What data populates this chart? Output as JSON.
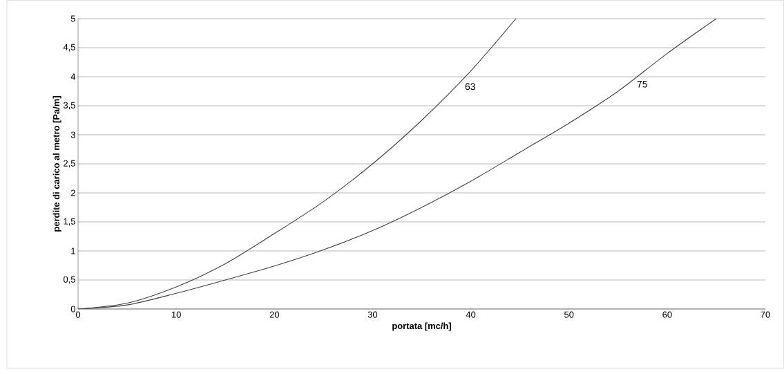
{
  "chart_data": {
    "type": "line",
    "xlabel": "portata [mc/h]",
    "ylabel": "perdite di carico al metro [Pa/m]",
    "series": [
      {
        "name": "63",
        "color": "#404040",
        "x": [
          0,
          5,
          10,
          15,
          20,
          25,
          30,
          35,
          40,
          44.6
        ],
        "values": [
          0,
          0.1,
          0.38,
          0.78,
          1.3,
          1.85,
          2.5,
          3.25,
          4.1,
          5
        ]
      },
      {
        "name": "75",
        "color": "#404040",
        "x": [
          0,
          5,
          10,
          15,
          20,
          25,
          30,
          35,
          40,
          45,
          50,
          55,
          60,
          65
        ],
        "values": [
          0,
          0.07,
          0.27,
          0.5,
          0.74,
          1.02,
          1.35,
          1.75,
          2.2,
          2.7,
          3.2,
          3.75,
          4.4,
          5
        ]
      }
    ],
    "xlim": [
      0,
      70
    ],
    "ylim": [
      0,
      5
    ],
    "xticks": [
      0,
      10,
      20,
      30,
      40,
      50,
      60,
      70
    ],
    "yticks": [
      0,
      {
        "value": 0.5,
        "label": "0,5"
      },
      1,
      {
        "value": 1.5,
        "label": "1,5"
      },
      2,
      {
        "value": 2.5,
        "label": "2,5"
      },
      3,
      {
        "value": 3.5,
        "label": "3,5"
      },
      4,
      {
        "value": 4.5,
        "label": "4,5"
      },
      5
    ],
    "grid": "y",
    "legend": false,
    "marker": "none",
    "line_style": "solid"
  }
}
